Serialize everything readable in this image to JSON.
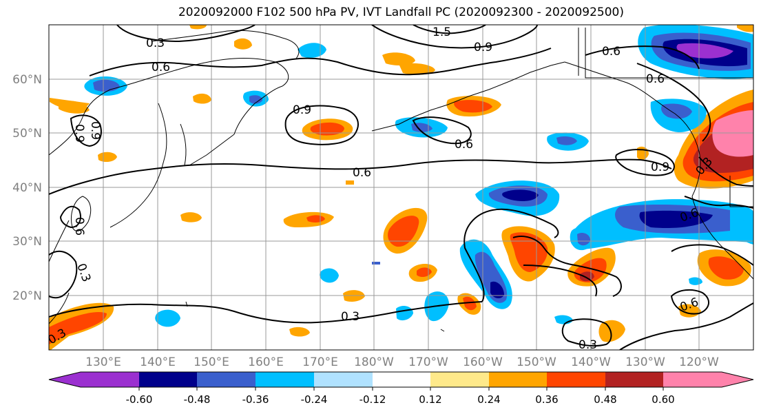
{
  "title": "2020092000 F102 500 hPa PV, IVT Landfall PC (2020092300 - 2020092500)",
  "lat_labels": [
    "60°N",
    "50°N",
    "40°N",
    "30°N",
    "20°N"
  ],
  "lon_labels": [
    "130°E",
    "140°E",
    "150°E",
    "160°E",
    "170°E",
    "180°W",
    "170°W",
    "160°W",
    "150°W",
    "140°W",
    "130°W",
    "120°W"
  ],
  "colorbar": {
    "colors": [
      "#9b30d0",
      "#00008b",
      "#3a5fcd",
      "#00bfff",
      "#b0e2ff",
      "#ffffff",
      "#fee98a",
      "#ffa500",
      "#ff4500",
      "#b22222",
      "#ff82ab"
    ],
    "tick_labels": [
      "-0.60",
      "-0.48",
      "-0.36",
      "-0.24",
      "-0.12",
      "0.12",
      "0.24",
      "0.36",
      "0.48",
      "0.60"
    ]
  },
  "contour_labels": [
    "0.3",
    "0.6",
    "0.9",
    "1.5",
    "0.9",
    "0.6",
    "0.6",
    "0.9",
    "0.6",
    "0.6",
    "0.9",
    "0.3",
    "0.6",
    "0.3",
    "0.3",
    "0.3",
    "0.6",
    "0.3",
    "0.9",
    "0.6"
  ]
}
